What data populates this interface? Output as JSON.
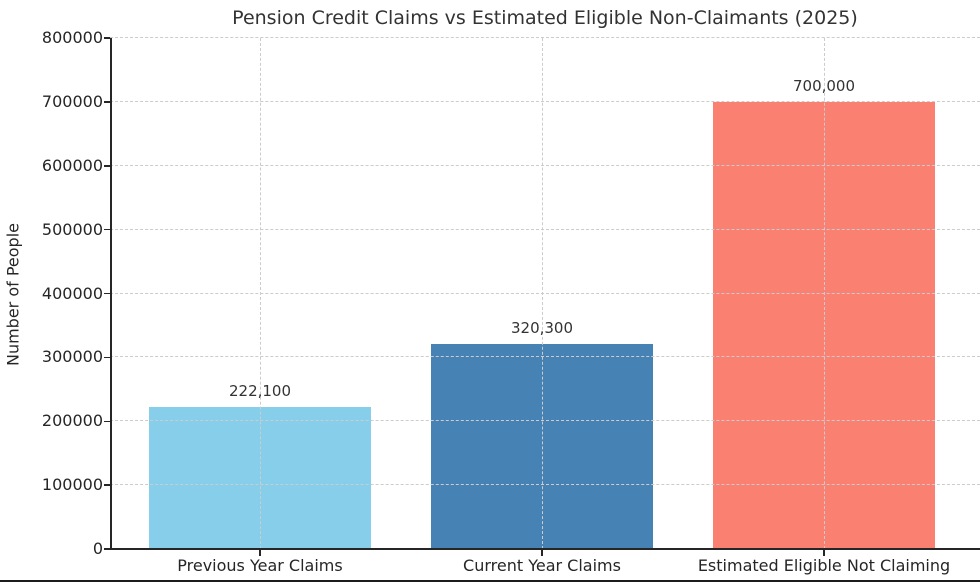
{
  "chart_data": {
    "type": "bar",
    "title": "Pension Credit Claims vs Estimated Eligible Non-Claimants (2025)",
    "xlabel": "",
    "ylabel": "Number of People",
    "categories": [
      "Previous Year Claims",
      "Current Year Claims",
      "Estimated Eligible Not Claiming"
    ],
    "values": [
      222100,
      320300,
      700000
    ],
    "value_labels": [
      "222,100",
      "320,300",
      "700,000"
    ],
    "bar_colors": [
      "#87CEEB",
      "#4682B4",
      "#FA8072"
    ],
    "ylim": [
      0,
      800000
    ],
    "yticks": [
      0,
      100000,
      200000,
      300000,
      400000,
      500000,
      600000,
      700000,
      800000
    ],
    "ytick_labels": [
      "0",
      "100000",
      "200000",
      "300000",
      "400000",
      "500000",
      "600000",
      "700000",
      "800000"
    ],
    "grid": "dashed gray, horizontal and vertical, drawn above bars",
    "legend_position": "none",
    "colors": {
      "grid": "#cccccc",
      "axis": "#262626",
      "text": "#333333",
      "background": "#ffffff"
    }
  }
}
